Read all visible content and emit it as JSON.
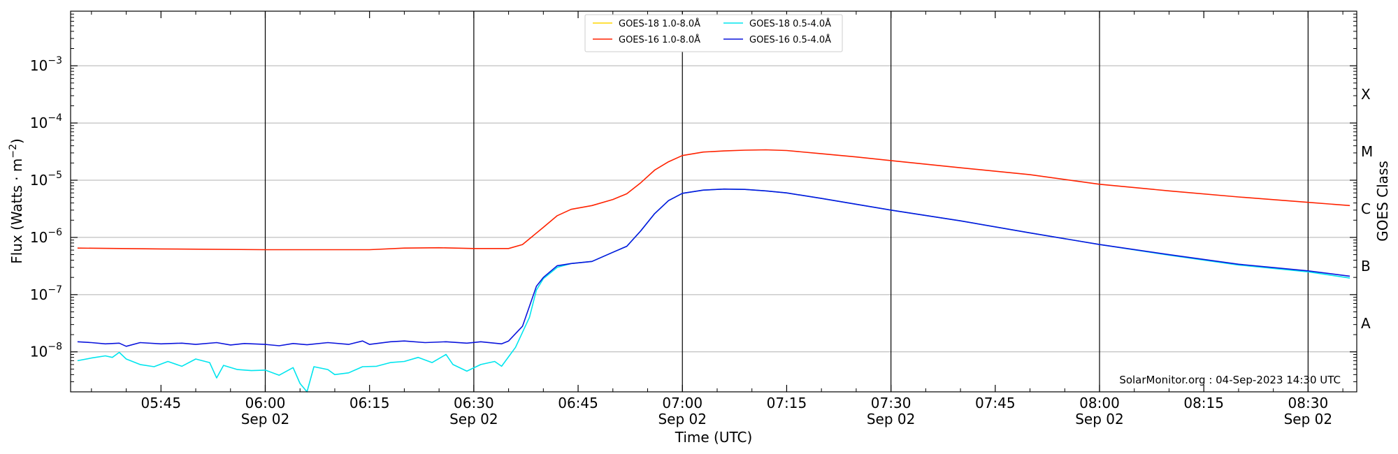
{
  "chart_data": {
    "type": "line",
    "title": "",
    "xlabel": "Time (UTC)",
    "ylabel": "Flux (Watts · m⁻²)",
    "y2label": "GOES Class",
    "yscale": "log",
    "xlim": [
      "05:32",
      "08:37"
    ],
    "ylim": [
      2e-09,
      0.009
    ],
    "grid": "horizontal at decades",
    "legend_position": "top-center",
    "credit": "SolarMonitor.org : 04-Sep-2023 14:30 UTC",
    "x_ticks": [
      {
        "time": "05:45",
        "label": "05:45",
        "sublabel": ""
      },
      {
        "time": "06:00",
        "label": "06:00",
        "sublabel": "Sep 02"
      },
      {
        "time": "06:15",
        "label": "06:15",
        "sublabel": ""
      },
      {
        "time": "06:30",
        "label": "06:30",
        "sublabel": "Sep 02"
      },
      {
        "time": "06:45",
        "label": "06:45",
        "sublabel": ""
      },
      {
        "time": "07:00",
        "label": "07:00",
        "sublabel": "Sep 02"
      },
      {
        "time": "07:15",
        "label": "07:15",
        "sublabel": ""
      },
      {
        "time": "07:30",
        "label": "07:30",
        "sublabel": "Sep 02"
      },
      {
        "time": "07:45",
        "label": "07:45",
        "sublabel": ""
      },
      {
        "time": "08:00",
        "label": "08:00",
        "sublabel": "Sep 02"
      },
      {
        "time": "08:15",
        "label": "08:15",
        "sublabel": ""
      },
      {
        "time": "08:30",
        "label": "08:30",
        "sublabel": "Sep 02"
      }
    ],
    "vertical_lines": [
      "06:00",
      "06:30",
      "07:00",
      "07:30",
      "08:00",
      "08:30"
    ],
    "y_ticks": [
      {
        "value": 1e-08,
        "base": "10",
        "exp": "−8"
      },
      {
        "value": 1e-07,
        "base": "10",
        "exp": "−7"
      },
      {
        "value": 1e-06,
        "base": "10",
        "exp": "−6"
      },
      {
        "value": 1e-05,
        "base": "10",
        "exp": "−5"
      },
      {
        "value": 0.0001,
        "base": "10",
        "exp": "−4"
      },
      {
        "value": 0.001,
        "base": "10",
        "exp": "−3"
      }
    ],
    "goes_classes": [
      {
        "label": "A",
        "value": 3.16e-08
      },
      {
        "label": "B",
        "value": 3.16e-07
      },
      {
        "label": "C",
        "value": 3.16e-06
      },
      {
        "label": "M",
        "value": 3.16e-05
      },
      {
        "label": "X",
        "value": 0.000316
      }
    ],
    "series": [
      {
        "name": "GOES-18 1.0-8.0Å",
        "color": "#ffd700",
        "points": []
      },
      {
        "name": "GOES-16 1.0-8.0Å",
        "color": "#ff2200",
        "points": [
          [
            "05:33",
            6.5e-07
          ],
          [
            "05:45",
            6.3e-07
          ],
          [
            "06:00",
            6.1e-07
          ],
          [
            "06:15",
            6.1e-07
          ],
          [
            "06:20",
            6.5e-07
          ],
          [
            "06:25",
            6.6e-07
          ],
          [
            "06:30",
            6.4e-07
          ],
          [
            "06:35",
            6.4e-07
          ],
          [
            "06:37",
            7.5e-07
          ],
          [
            "06:40",
            1.5e-06
          ],
          [
            "06:42",
            2.4e-06
          ],
          [
            "06:44",
            3.1e-06
          ],
          [
            "06:47",
            3.6e-06
          ],
          [
            "06:50",
            4.6e-06
          ],
          [
            "06:52",
            5.8e-06
          ],
          [
            "06:54",
            9e-06
          ],
          [
            "06:56",
            1.5e-05
          ],
          [
            "06:58",
            2.1e-05
          ],
          [
            "07:00",
            2.7e-05
          ],
          [
            "07:03",
            3.1e-05
          ],
          [
            "07:06",
            3.25e-05
          ],
          [
            "07:09",
            3.35e-05
          ],
          [
            "07:12",
            3.4e-05
          ],
          [
            "07:15",
            3.3e-05
          ],
          [
            "07:20",
            2.9e-05
          ],
          [
            "07:25",
            2.55e-05
          ],
          [
            "07:30",
            2.2e-05
          ],
          [
            "07:40",
            1.65e-05
          ],
          [
            "07:50",
            1.25e-05
          ],
          [
            "08:00",
            8.5e-06
          ],
          [
            "08:10",
            6.5e-06
          ],
          [
            "08:20",
            5.1e-06
          ],
          [
            "08:30",
            4.1e-06
          ],
          [
            "08:36",
            3.6e-06
          ]
        ]
      },
      {
        "name": "GOES-18 0.5-4.0Å",
        "color": "#00e5ee",
        "points": [
          [
            "05:33",
            7e-09
          ],
          [
            "05:35",
            7.8e-09
          ],
          [
            "05:37",
            8.5e-09
          ],
          [
            "05:38",
            8e-09
          ],
          [
            "05:39",
            9.8e-09
          ],
          [
            "05:40",
            7.5e-09
          ],
          [
            "05:42",
            6e-09
          ],
          [
            "05:44",
            5.5e-09
          ],
          [
            "05:46",
            6.8e-09
          ],
          [
            "05:48",
            5.6e-09
          ],
          [
            "05:50",
            7.5e-09
          ],
          [
            "05:52",
            6.5e-09
          ],
          [
            "05:53",
            3.5e-09
          ],
          [
            "05:54",
            5.8e-09
          ],
          [
            "05:56",
            4.9e-09
          ],
          [
            "05:58",
            4.7e-09
          ],
          [
            "06:00",
            4.8e-09
          ],
          [
            "06:02",
            3.9e-09
          ],
          [
            "06:04",
            5.3e-09
          ],
          [
            "06:05",
            2.8e-09
          ],
          [
            "06:06",
            2e-09
          ],
          [
            "06:07",
            5.5e-09
          ],
          [
            "06:09",
            4.9e-09
          ],
          [
            "06:10",
            4e-09
          ],
          [
            "06:12",
            4.3e-09
          ],
          [
            "06:14",
            5.5e-09
          ],
          [
            "06:16",
            5.6e-09
          ],
          [
            "06:18",
            6.5e-09
          ],
          [
            "06:20",
            6.8e-09
          ],
          [
            "06:22",
            8e-09
          ],
          [
            "06:24",
            6.5e-09
          ],
          [
            "06:26",
            9e-09
          ],
          [
            "06:27",
            6e-09
          ],
          [
            "06:29",
            4.6e-09
          ],
          [
            "06:31",
            6e-09
          ],
          [
            "06:33",
            6.8e-09
          ],
          [
            "06:34",
            5.6e-09
          ],
          [
            "06:36",
            1.2e-08
          ],
          [
            "06:38",
            4e-08
          ],
          [
            "06:39",
            1.2e-07
          ],
          [
            "06:40",
            1.9e-07
          ],
          [
            "06:42",
            3e-07
          ],
          [
            "06:44",
            3.5e-07
          ],
          [
            "06:47",
            3.8e-07
          ],
          [
            "06:50",
            5.5e-07
          ],
          [
            "06:52",
            7e-07
          ],
          [
            "06:54",
            1.3e-06
          ],
          [
            "06:56",
            2.6e-06
          ],
          [
            "06:58",
            4.4e-06
          ],
          [
            "07:00",
            5.9e-06
          ],
          [
            "07:03",
            6.7e-06
          ],
          [
            "07:06",
            7e-06
          ],
          [
            "07:09",
            6.9e-06
          ],
          [
            "07:12",
            6.5e-06
          ],
          [
            "07:15",
            6e-06
          ],
          [
            "07:20",
            4.8e-06
          ],
          [
            "07:25",
            3.8e-06
          ],
          [
            "07:30",
            3e-06
          ],
          [
            "07:40",
            1.95e-06
          ],
          [
            "07:50",
            1.2e-06
          ],
          [
            "08:00",
            7.5e-07
          ],
          [
            "08:10",
            4.9e-07
          ],
          [
            "08:20",
            3.3e-07
          ],
          [
            "08:30",
            2.5e-07
          ],
          [
            "08:36",
            1.95e-07
          ]
        ]
      },
      {
        "name": "GOES-16 0.5-4.0Å",
        "color": "#0a14dc",
        "points": [
          [
            "05:33",
            1.5e-08
          ],
          [
            "05:35",
            1.45e-08
          ],
          [
            "05:37",
            1.38e-08
          ],
          [
            "05:39",
            1.42e-08
          ],
          [
            "05:40",
            1.25e-08
          ],
          [
            "05:42",
            1.45e-08
          ],
          [
            "05:45",
            1.38e-08
          ],
          [
            "05:48",
            1.42e-08
          ],
          [
            "05:50",
            1.35e-08
          ],
          [
            "05:53",
            1.45e-08
          ],
          [
            "05:55",
            1.32e-08
          ],
          [
            "05:57",
            1.4e-08
          ],
          [
            "06:00",
            1.35e-08
          ],
          [
            "06:02",
            1.28e-08
          ],
          [
            "06:04",
            1.4e-08
          ],
          [
            "06:06",
            1.33e-08
          ],
          [
            "06:09",
            1.45e-08
          ],
          [
            "06:12",
            1.35e-08
          ],
          [
            "06:14",
            1.55e-08
          ],
          [
            "06:15",
            1.35e-08
          ],
          [
            "06:18",
            1.5e-08
          ],
          [
            "06:20",
            1.55e-08
          ],
          [
            "06:23",
            1.45e-08
          ],
          [
            "06:26",
            1.5e-08
          ],
          [
            "06:29",
            1.42e-08
          ],
          [
            "06:31",
            1.5e-08
          ],
          [
            "06:34",
            1.38e-08
          ],
          [
            "06:35",
            1.55e-08
          ],
          [
            "06:37",
            2.8e-08
          ],
          [
            "06:39",
            1.4e-07
          ],
          [
            "06:40",
            2e-07
          ],
          [
            "06:42",
            3.2e-07
          ],
          [
            "06:44",
            3.5e-07
          ],
          [
            "06:47",
            3.8e-07
          ],
          [
            "06:50",
            5.5e-07
          ],
          [
            "06:52",
            7e-07
          ],
          [
            "06:54",
            1.3e-06
          ],
          [
            "06:56",
            2.6e-06
          ],
          [
            "06:58",
            4.4e-06
          ],
          [
            "07:00",
            5.9e-06
          ],
          [
            "07:03",
            6.7e-06
          ],
          [
            "07:06",
            7e-06
          ],
          [
            "07:09",
            6.9e-06
          ],
          [
            "07:12",
            6.5e-06
          ],
          [
            "07:15",
            6e-06
          ],
          [
            "07:20",
            4.8e-06
          ],
          [
            "07:25",
            3.8e-06
          ],
          [
            "07:30",
            3e-06
          ],
          [
            "07:40",
            1.95e-06
          ],
          [
            "07:50",
            1.2e-06
          ],
          [
            "08:00",
            7.5e-07
          ],
          [
            "08:10",
            5e-07
          ],
          [
            "08:20",
            3.4e-07
          ],
          [
            "08:30",
            2.6e-07
          ],
          [
            "08:36",
            2.1e-07
          ]
        ]
      }
    ]
  }
}
